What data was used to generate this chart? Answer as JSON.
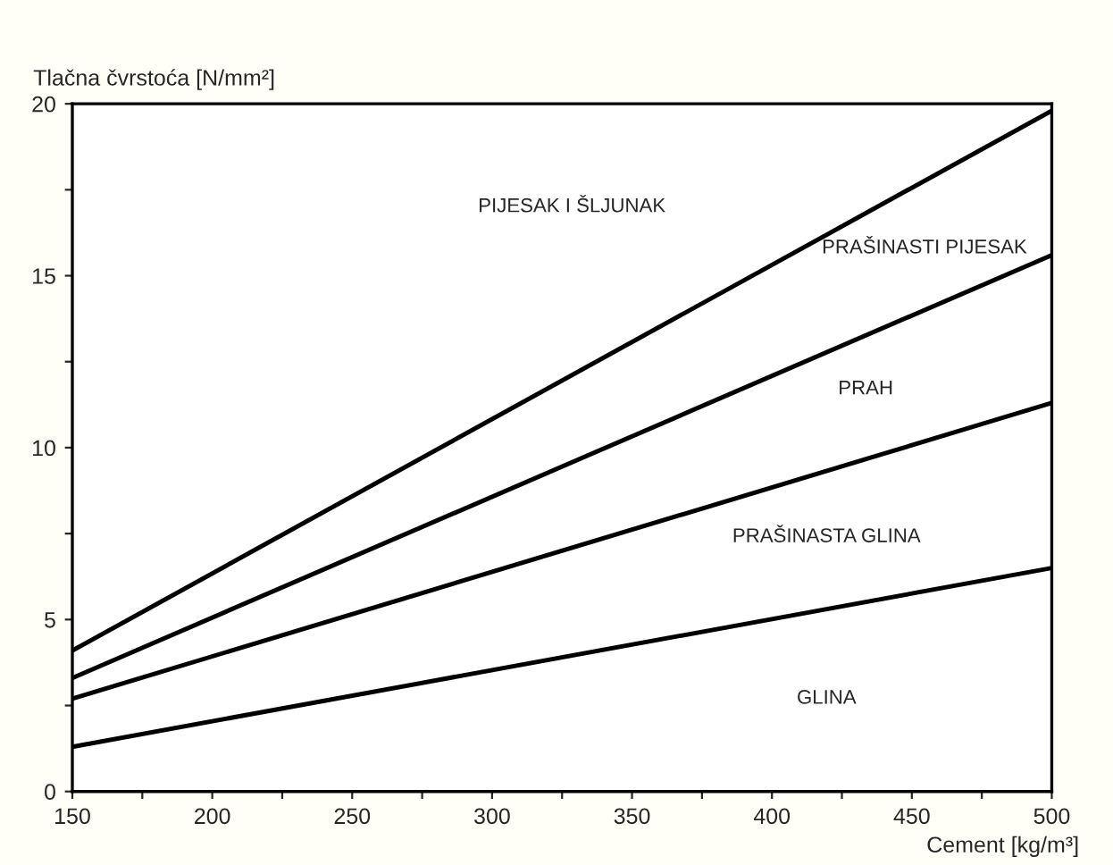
{
  "chart_data": {
    "type": "line",
    "xlabel": "Cement [kg/m³]",
    "ylabel": "Tlačna čvrstoća [N/mm²]",
    "x": [
      150,
      500
    ],
    "series": [
      {
        "color": "#000000",
        "values": [
          4.1,
          19.8
        ]
      },
      {
        "color": "#000000",
        "values": [
          3.3,
          15.6
        ]
      },
      {
        "color": "#000000",
        "values": [
          2.7,
          11.3
        ]
      },
      {
        "color": "#000000",
        "values": [
          1.3,
          6.5
        ]
      }
    ],
    "xlim": [
      150,
      500
    ],
    "ylim": [
      0,
      20
    ],
    "xticks": [
      150,
      {
        "value": 175,
        "label": null
      },
      200,
      {
        "value": 225,
        "label": null
      },
      250,
      {
        "value": 275,
        "label": null
      },
      300,
      {
        "value": 325,
        "label": null
      },
      350,
      {
        "value": 375,
        "label": null
      },
      400,
      {
        "value": 425,
        "label": null
      },
      450,
      {
        "value": 475,
        "label": null
      },
      500
    ],
    "yticks": [
      0,
      {
        "value": 2.5,
        "label": null
      },
      5,
      {
        "value": 7.5,
        "label": null
      },
      10,
      {
        "value": 12.5,
        "label": null
      },
      15,
      {
        "value": 17.5,
        "label": null
      },
      20
    ],
    "annotations": [
      "PIJESAK I ŠLJUNAK",
      "PRAŠINASTI PIJESAK",
      "PRAH",
      "PRAŠINASTA GLINA",
      "GLINA"
    ],
    "grid": false,
    "legend": false,
    "marker": "none",
    "line_style": "solid"
  }
}
